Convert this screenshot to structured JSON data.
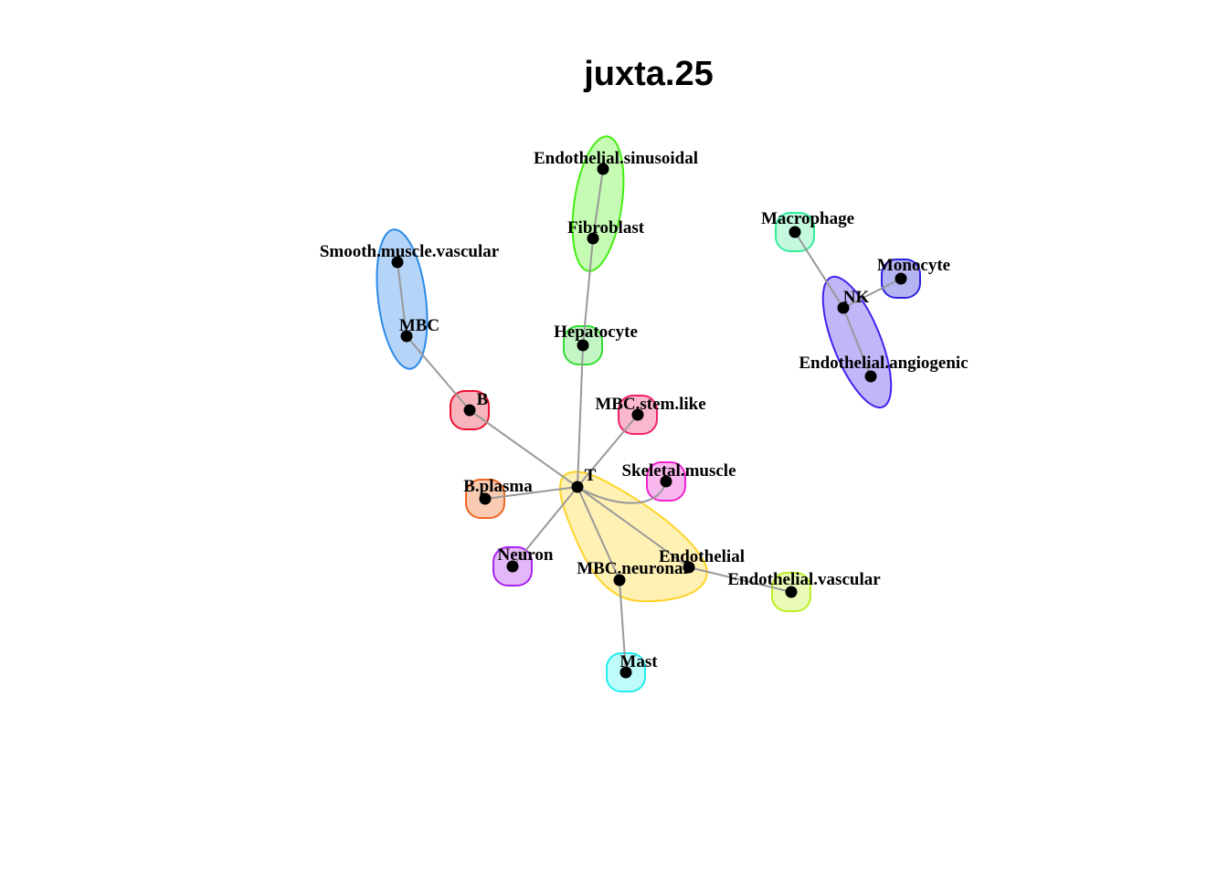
{
  "title": "juxta.25",
  "nodes": [
    {
      "id": "Endothelial.sinusoidal",
      "label": "Endothelial.sinusoidal"
    },
    {
      "id": "Fibroblast",
      "label": "Fibroblast"
    },
    {
      "id": "Smooth.muscle.vascular",
      "label": "Smooth.muscle.vascular"
    },
    {
      "id": "MBC",
      "label": "MBC"
    },
    {
      "id": "Hepatocyte",
      "label": "Hepatocyte"
    },
    {
      "id": "Macrophage",
      "label": "Macrophage"
    },
    {
      "id": "Monocyte",
      "label": "Monocyte"
    },
    {
      "id": "NK",
      "label": "NK"
    },
    {
      "id": "Endothelial.angiogenic",
      "label": "Endothelial.angiogenic"
    },
    {
      "id": "B",
      "label": "B"
    },
    {
      "id": "MBC.stem.like",
      "label": "MBC.stem.like"
    },
    {
      "id": "T",
      "label": "T"
    },
    {
      "id": "Skeletal.muscle",
      "label": "Skeletal.muscle"
    },
    {
      "id": "B.plasma",
      "label": "B.plasma"
    },
    {
      "id": "Neuron",
      "label": "Neuron"
    },
    {
      "id": "Endothelial",
      "label": "Endothelial"
    },
    {
      "id": "MBC.neuronal",
      "label": "MBC.neuronal"
    },
    {
      "id": "Endothelial.vascular",
      "label": "Endothelial.vascular"
    },
    {
      "id": "Mast",
      "label": "Mast"
    }
  ],
  "edges": [
    [
      "Endothelial.sinusoidal",
      "Fibroblast"
    ],
    [
      "Fibroblast",
      "Hepatocyte"
    ],
    [
      "Hepatocyte",
      "T"
    ],
    [
      "Smooth.muscle.vascular",
      "MBC"
    ],
    [
      "MBC",
      "B"
    ],
    [
      "B",
      "T"
    ],
    [
      "MBC.stem.like",
      "T"
    ],
    [
      "T",
      "Skeletal.muscle"
    ],
    [
      "T",
      "B.plasma"
    ],
    [
      "T",
      "Neuron"
    ],
    [
      "T",
      "MBC.neuronal"
    ],
    [
      "T",
      "Endothelial"
    ],
    [
      "MBC.neuronal",
      "Mast"
    ],
    [
      "Endothelial",
      "Endothelial.vascular"
    ],
    [
      "Macrophage",
      "NK"
    ],
    [
      "Monocyte",
      "NK"
    ],
    [
      "NK",
      "Endothelial.angiogenic"
    ]
  ],
  "groups": [
    {
      "id": "sinusoidal-fibroblast",
      "members": [
        "Endothelial.sinusoidal",
        "Fibroblast"
      ],
      "stroke": "#44ee11",
      "fill": "#c6fbb4"
    },
    {
      "id": "smooth-mbc",
      "members": [
        "Smooth.muscle.vascular",
        "MBC"
      ],
      "stroke": "#2b8be8",
      "fill": "#b5d4f7"
    },
    {
      "id": "hepatocyte",
      "members": [
        "Hepatocyte"
      ],
      "stroke": "#33dd33",
      "fill": "#c4f5c4"
    },
    {
      "id": "macrophage",
      "members": [
        "Macrophage"
      ],
      "stroke": "#33ee99",
      "fill": "#c4f9e0"
    },
    {
      "id": "monocyte",
      "members": [
        "Monocyte"
      ],
      "stroke": "#2b22dd",
      "fill": "#b4b4f3"
    },
    {
      "id": "nk-angiogenic",
      "members": [
        "NK",
        "Endothelial.angiogenic"
      ],
      "stroke": "#4422ee",
      "fill": "#c1b6f7"
    },
    {
      "id": "b",
      "members": [
        "B"
      ],
      "stroke": "#ee1133",
      "fill": "#f7b4bd"
    },
    {
      "id": "mbc-stem",
      "members": [
        "MBC.stem.like"
      ],
      "stroke": "#ee2266",
      "fill": "#f9b8cc"
    },
    {
      "id": "skeletal",
      "members": [
        "Skeletal.muscle"
      ],
      "stroke": "#ee22cc",
      "fill": "#f8b8ee"
    },
    {
      "id": "b-plasma",
      "members": [
        "B.plasma"
      ],
      "stroke": "#ee6622",
      "fill": "#f9cbb3"
    },
    {
      "id": "neuron",
      "members": [
        "Neuron"
      ],
      "stroke": "#aa22ee",
      "fill": "#e2b8f8"
    },
    {
      "id": "t-cluster",
      "members": [
        "T",
        "MBC.neuronal",
        "Endothelial"
      ],
      "stroke": "#ffd42a",
      "fill": "#fff0b4"
    },
    {
      "id": "endo-vascular",
      "members": [
        "Endothelial.vascular"
      ],
      "stroke": "#bbee22",
      "fill": "#eafbb8"
    },
    {
      "id": "mast",
      "members": [
        "Mast"
      ],
      "stroke": "#22eeee",
      "fill": "#c0fbfb"
    }
  ]
}
